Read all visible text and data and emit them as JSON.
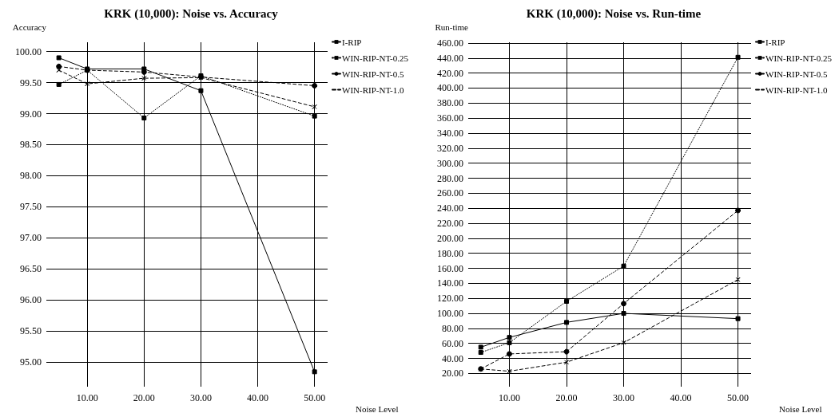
{
  "chart_data": [
    {
      "type": "line",
      "title": "KRK (10,000): Noise vs. Accuracy",
      "xlabel": "Noise Level",
      "ylabel": "Accuracy",
      "x": [
        5,
        10,
        20,
        30,
        50
      ],
      "series": [
        {
          "name": "I-RIP",
          "color": "#000000",
          "marker": "square",
          "line_style": "solid",
          "values": [
            99.9,
            99.72,
            99.72,
            99.37,
            94.84
          ]
        },
        {
          "name": "WIN-RIP-NT-0.25",
          "color": "#000000",
          "marker": "square",
          "line_style": "dotted",
          "values": [
            99.47,
            99.7,
            98.93,
            99.61,
            98.96
          ]
        },
        {
          "name": "WIN-RIP-NT-0.5",
          "color": "#000000",
          "marker": "circle",
          "line_style": "dashed",
          "values": [
            99.76,
            99.7,
            99.67,
            99.59,
            99.45
          ]
        },
        {
          "name": "WIN-RIP-NT-1.0",
          "color": "#000000",
          "marker": "cross",
          "line_style": "dashed",
          "values": [
            99.7,
            99.48,
            99.57,
            99.58,
            99.11
          ]
        }
      ],
      "xlim": [
        2.8,
        52.3
      ],
      "xticks": [
        {
          "value": 10,
          "label": "10.00"
        },
        {
          "value": 20,
          "label": "20.00"
        },
        {
          "value": 30,
          "label": "30.00"
        },
        {
          "value": 40,
          "label": "40.00"
        },
        {
          "value": 50,
          "label": "50.00"
        }
      ],
      "ylim": [
        94.6,
        100.15
      ],
      "yticks": [
        {
          "value": 95,
          "label": "95.00"
        },
        {
          "value": 95.5,
          "label": "95.50"
        },
        {
          "value": 96,
          "label": "96.00"
        },
        {
          "value": 96.5,
          "label": "96.50"
        },
        {
          "value": 97,
          "label": "97.00"
        },
        {
          "value": 97.5,
          "label": "97.50"
        },
        {
          "value": 98,
          "label": "98.00"
        },
        {
          "value": 98.5,
          "label": "98.50"
        },
        {
          "value": 99,
          "label": "99.00"
        },
        {
          "value": 99.5,
          "label": "99.50"
        },
        {
          "value": 100,
          "label": "100.00"
        }
      ],
      "grid": true,
      "legend": "top right"
    },
    {
      "type": "line",
      "title": "KRK (10,000): Noise vs. Run-time",
      "xlabel": "Noise Level",
      "ylabel": "Run-time",
      "x": [
        5,
        10,
        20,
        30,
        50
      ],
      "series": [
        {
          "name": "I-RIP",
          "color": "#000000",
          "marker": "square",
          "line_style": "solid",
          "values": [
            55,
            68,
            88,
            100,
            93
          ]
        },
        {
          "name": "WIN-RIP-NT-0.25",
          "color": "#000000",
          "marker": "square",
          "line_style": "dotted",
          "values": [
            48,
            61,
            116,
            163,
            441
          ]
        },
        {
          "name": "WIN-RIP-NT-0.5",
          "color": "#000000",
          "marker": "circle",
          "line_style": "dashed",
          "values": [
            26,
            46,
            49,
            113,
            237
          ]
        },
        {
          "name": "WIN-RIP-NT-1.0",
          "color": "#000000",
          "marker": "cross",
          "line_style": "dashed",
          "values": [
            26,
            23,
            35,
            61,
            145
          ]
        }
      ],
      "xlim": [
        2.8,
        52.3
      ],
      "xticks": [
        {
          "value": 10,
          "label": "10.00"
        },
        {
          "value": 20,
          "label": "20.00"
        },
        {
          "value": 30,
          "label": "30.00"
        },
        {
          "value": 40,
          "label": "40.00"
        },
        {
          "value": 50,
          "label": "50.00"
        }
      ],
      "ylim": [
        2.4,
        461
      ],
      "yticks": [
        {
          "value": 20,
          "label": "20.00"
        },
        {
          "value": 40,
          "label": "40.00"
        },
        {
          "value": 60,
          "label": "60.00"
        },
        {
          "value": 80,
          "label": "80.00"
        },
        {
          "value": 100,
          "label": "100.00"
        },
        {
          "value": 120,
          "label": "120.00"
        },
        {
          "value": 140,
          "label": "140.00"
        },
        {
          "value": 160,
          "label": "160.00"
        },
        {
          "value": 180,
          "label": "180.00"
        },
        {
          "value": 200,
          "label": "200.00"
        },
        {
          "value": 220,
          "label": "220.00"
        },
        {
          "value": 240,
          "label": "240.00"
        },
        {
          "value": 260,
          "label": "260.00"
        },
        {
          "value": 280,
          "label": "280.00"
        },
        {
          "value": 300,
          "label": "300.00"
        },
        {
          "value": 320,
          "label": "320.00"
        },
        {
          "value": 340,
          "label": "340.00"
        },
        {
          "value": 360,
          "label": "360.00"
        },
        {
          "value": 380,
          "label": "380.00"
        },
        {
          "value": 400,
          "label": "400.00"
        },
        {
          "value": 420,
          "label": "420.00"
        },
        {
          "value": 440,
          "label": "440.00"
        },
        {
          "value": 460,
          "label": "460.00"
        }
      ],
      "grid": true,
      "legend": "top right"
    }
  ]
}
